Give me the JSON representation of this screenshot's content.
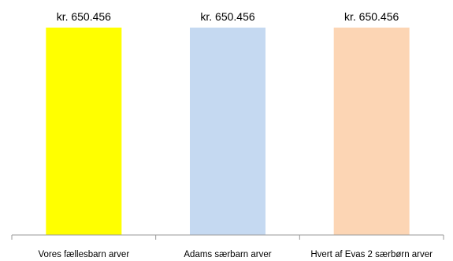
{
  "chart_data": {
    "type": "bar",
    "title": "",
    "xlabel": "",
    "ylabel": "",
    "categories": [
      "Vores fællesbarn arver",
      "Adams særbarn arver",
      "Hvert af Evas 2 særbørn arver"
    ],
    "values": [
      650456,
      650456,
      650456
    ],
    "value_labels": [
      "kr. 650.456",
      "kr. 650.456",
      "kr. 650.456"
    ],
    "colors": [
      "#ffff00",
      "#c5d9f1",
      "#fcd5b4"
    ],
    "ylim": [
      0,
      650456
    ],
    "grid": false,
    "legend": "none"
  }
}
